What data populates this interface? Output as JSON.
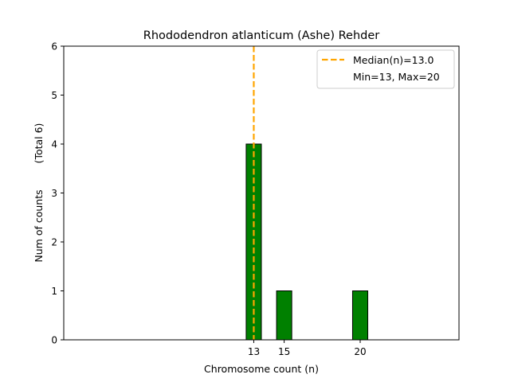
{
  "chart_data": {
    "type": "bar",
    "title": "Rhododendron atlanticum (Ashe) Rehder",
    "xlabel": "Chromosome count (n)",
    "ylabel": "Num of counts",
    "ylabel_note": "(Total 6)",
    "x": [
      13,
      15,
      20
    ],
    "values": [
      4,
      1,
      1
    ],
    "xticks": [
      13,
      15,
      20
    ],
    "yticks": [
      0,
      1,
      2,
      3,
      4,
      5,
      6
    ],
    "ylim": [
      0,
      6
    ],
    "xlim": [
      0.5,
      26.5
    ],
    "bar_width": 1,
    "bar_color": "#008000",
    "median": 13.0,
    "median_color": "#ffa500",
    "legend": {
      "placement": "top-right",
      "entries": [
        "Median(n)=13.0",
        "Min=13, Max=20"
      ]
    }
  }
}
